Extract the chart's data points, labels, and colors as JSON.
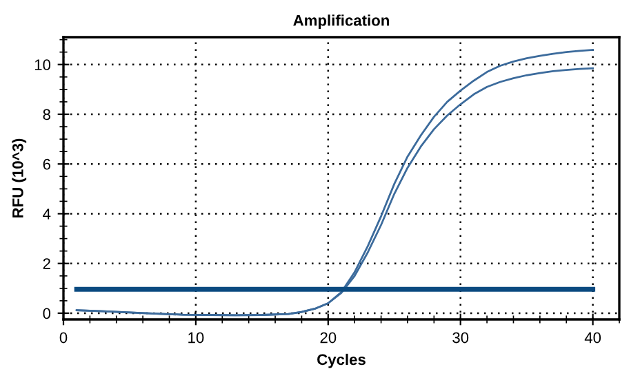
{
  "chart_data": {
    "type": "line",
    "title": "Amplification",
    "xlabel": "Cycles",
    "ylabel": "RFU (10^3)",
    "xlim": [
      0,
      42
    ],
    "xticks": [
      0,
      10,
      20,
      30,
      40
    ],
    "ylim": [
      -0.25,
      11.1
    ],
    "yticks": [
      0,
      2,
      4,
      6,
      8,
      10
    ],
    "grid": true,
    "marker": "none",
    "line_style": "solid",
    "series": [
      {
        "color": "#3c6b9c",
        "x": [
          1,
          3,
          5,
          7,
          9,
          11,
          13,
          15,
          17,
          18,
          19,
          20,
          21,
          22,
          23,
          24,
          25,
          26,
          27,
          28,
          29,
          30,
          31,
          32,
          33,
          34,
          35,
          36,
          37,
          38,
          39,
          40
        ],
        "values": [
          0.12,
          0.08,
          0.03,
          -0.02,
          -0.06,
          -0.07,
          -0.08,
          -0.07,
          -0.03,
          0.05,
          0.18,
          0.4,
          0.85,
          1.65,
          2.7,
          3.9,
          5.2,
          6.3,
          7.15,
          7.9,
          8.5,
          8.95,
          9.35,
          9.7,
          9.95,
          10.12,
          10.25,
          10.35,
          10.43,
          10.5,
          10.55,
          10.59
        ]
      },
      {
        "color": "#3c6b9c",
        "x": [
          1,
          3,
          5,
          7,
          9,
          11,
          13,
          15,
          17,
          18,
          19,
          20,
          21,
          22,
          23,
          24,
          25,
          26,
          27,
          28,
          29,
          30,
          31,
          32,
          33,
          34,
          35,
          36,
          37,
          38,
          39,
          40
        ],
        "values": [
          0.12,
          0.08,
          0.03,
          -0.02,
          -0.06,
          -0.07,
          -0.08,
          -0.07,
          -0.03,
          0.05,
          0.18,
          0.4,
          0.82,
          1.5,
          2.45,
          3.55,
          4.8,
          5.85,
          6.7,
          7.4,
          7.95,
          8.4,
          8.8,
          9.1,
          9.3,
          9.45,
          9.57,
          9.66,
          9.73,
          9.78,
          9.82,
          9.85
        ]
      },
      {
        "color": "#0b4a80",
        "x": [
          1,
          40
        ],
        "values": [
          0.96,
          0.96
        ]
      }
    ]
  }
}
